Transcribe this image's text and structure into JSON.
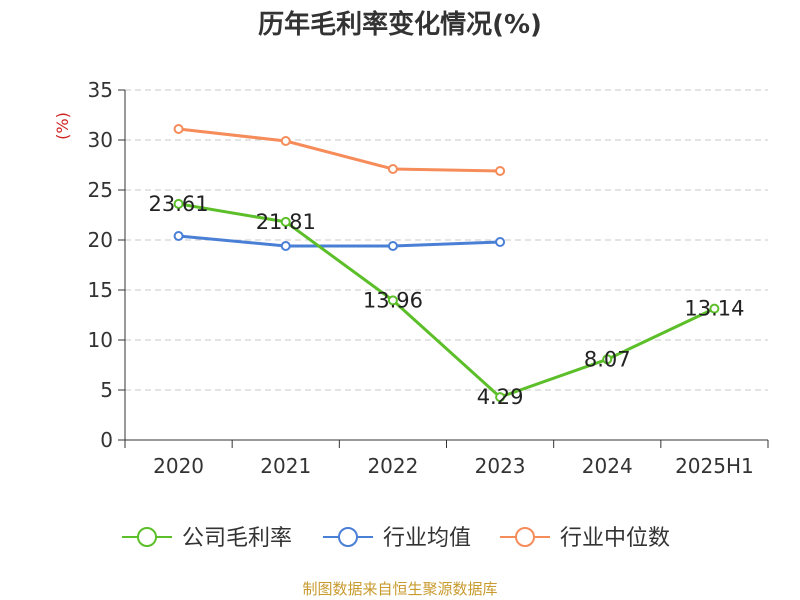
{
  "title": "历年毛利率变化情况(%)",
  "source": "制图数据来自恒生聚源数据库",
  "colors": {
    "company": "#5cbf2a",
    "industry_avg": "#4a7fd6",
    "industry_median": "#f58c5a",
    "unit_label": "#d02020",
    "source_text": "#c99a2e"
  },
  "chart_data": {
    "type": "line",
    "title": "历年毛利率变化情况(%)",
    "ylabel": "(%)",
    "xlabel": "",
    "categories": [
      "2020",
      "2021",
      "2022",
      "2023",
      "2024",
      "2025H1"
    ],
    "ylim": [
      0,
      35
    ],
    "yticks": [
      0,
      5,
      10,
      15,
      20,
      25,
      30,
      35
    ],
    "grid": true,
    "legend_position": "bottom",
    "series": [
      {
        "name": "公司毛利率",
        "key": "company",
        "values": [
          23.61,
          21.81,
          13.96,
          4.29,
          8.07,
          13.14
        ],
        "labels": [
          "23.61",
          "21.81",
          "13.96",
          "4.29",
          "8.07",
          "13.14"
        ]
      },
      {
        "name": "行业均值",
        "key": "industry_avg",
        "values": [
          20.4,
          19.4,
          19.4,
          19.8,
          null,
          null
        ]
      },
      {
        "name": "行业中位数",
        "key": "industry_median",
        "values": [
          31.1,
          29.9,
          27.1,
          26.9,
          null,
          null
        ]
      }
    ]
  }
}
